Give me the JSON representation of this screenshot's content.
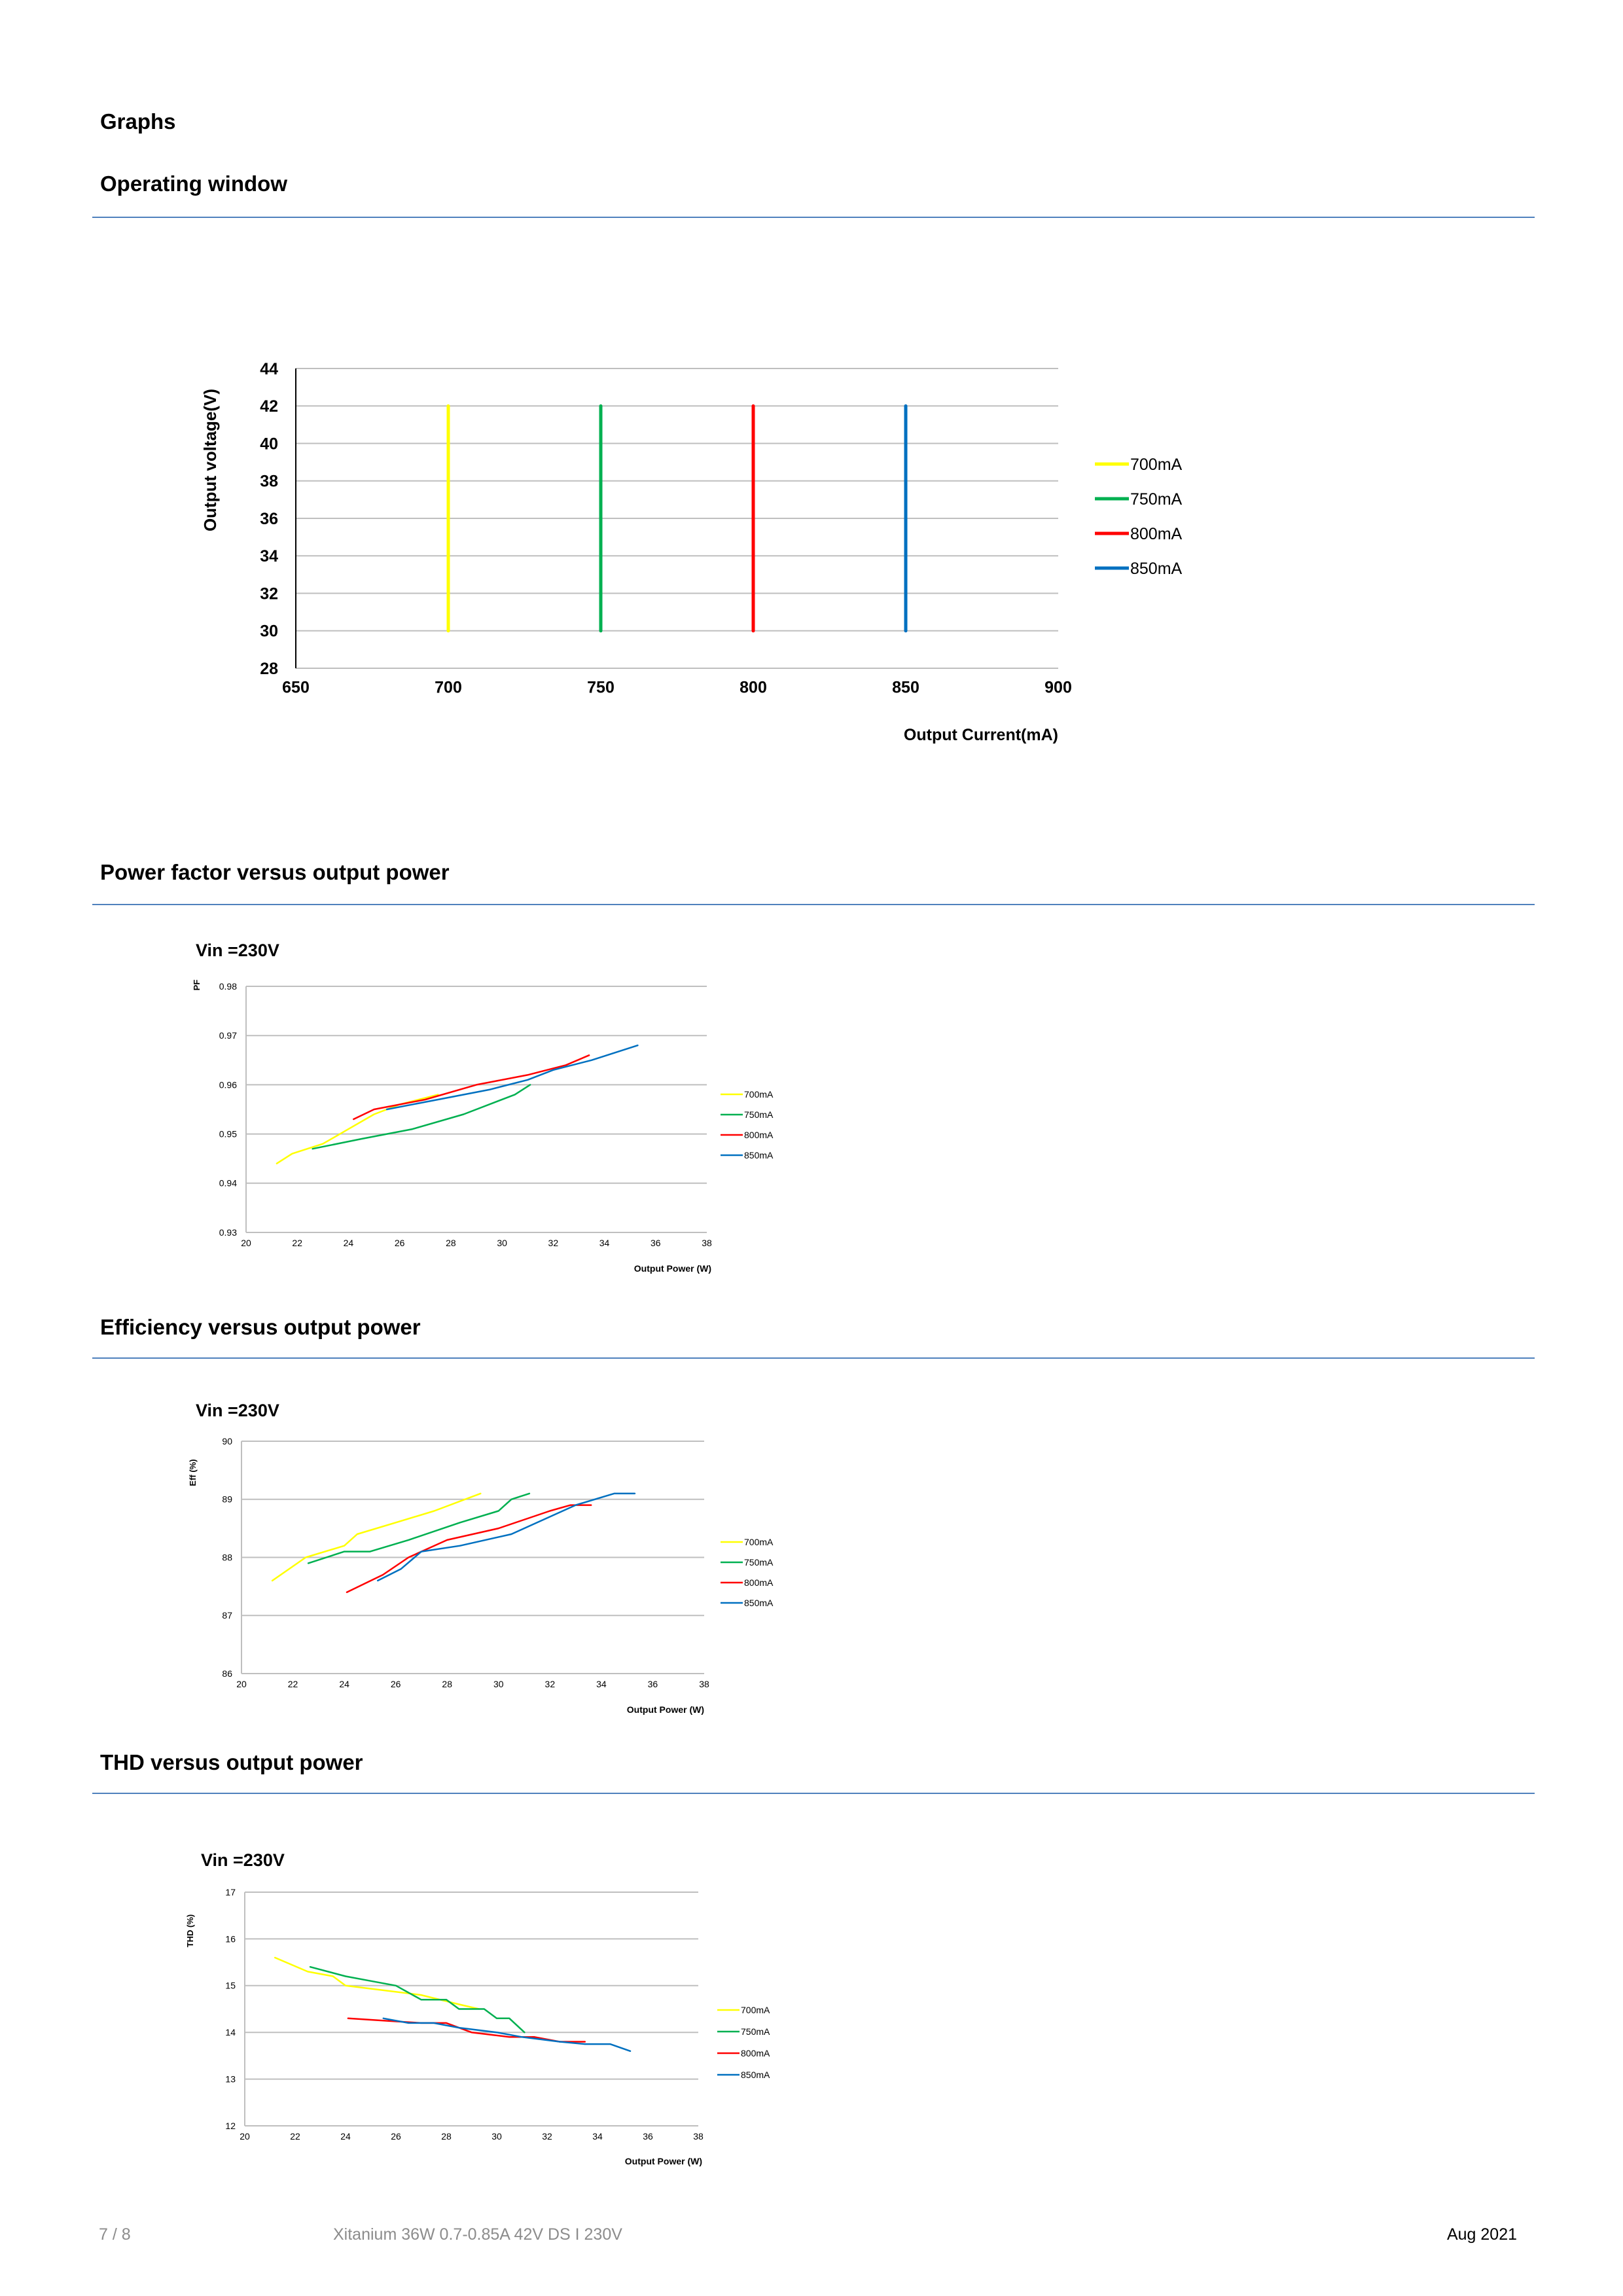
{
  "page": {
    "title": "Graphs",
    "sections": {
      "operating_window": "Operating window",
      "pf": "Power factor versus output power",
      "eff": "Efficiency versus output power",
      "thd": "THD versus output power"
    }
  },
  "footer": {
    "page": "7 / 8",
    "product": "Xitanium 36W 0.7-0.85A 42V DS I 230V",
    "date": "Aug 2021"
  },
  "colors": {
    "700mA": "#ffff00",
    "750mA": "#00b050",
    "800mA": "#ff0000",
    "850mA": "#0070c0",
    "grid": "#bfbfbf",
    "rule": "#4f81bd"
  },
  "chart_data": [
    {
      "id": "ow",
      "type": "line",
      "title": "",
      "xlabel": "Output Current(mA)",
      "ylabel": "Output voltage(V)",
      "xlim": [
        650,
        900
      ],
      "ylim": [
        28,
        44
      ],
      "xticks": [
        650,
        700,
        750,
        800,
        850,
        900
      ],
      "yticks": [
        28,
        30,
        32,
        34,
        36,
        38,
        40,
        42,
        44
      ],
      "grid": true,
      "legend": "right",
      "series": [
        {
          "name": "700mA",
          "color": "#ffff00",
          "points": [
            [
              700,
              30
            ],
            [
              700,
              42
            ]
          ]
        },
        {
          "name": "750mA",
          "color": "#00b050",
          "points": [
            [
              750,
              30
            ],
            [
              750,
              42
            ]
          ]
        },
        {
          "name": "800mA",
          "color": "#ff0000",
          "points": [
            [
              800,
              30
            ],
            [
              800,
              42
            ]
          ]
        },
        {
          "name": "850mA",
          "color": "#0070c0",
          "points": [
            [
              850,
              30
            ],
            [
              850,
              42
            ]
          ]
        }
      ]
    },
    {
      "id": "pf",
      "type": "line",
      "title": "Vin =230V",
      "xlabel": "Output Power (W)",
      "ylabel": "PF",
      "xlim": [
        20,
        38
      ],
      "ylim": [
        0.93,
        0.98
      ],
      "xticks": [
        20,
        22,
        24,
        26,
        28,
        30,
        32,
        34,
        36,
        38
      ],
      "yticks": [
        0.93,
        0.94,
        0.95,
        0.96,
        0.97,
        0.98
      ],
      "grid": true,
      "legend": "right",
      "series": [
        {
          "name": "700mA",
          "color": "#ffff00",
          "points": [
            [
              21.2,
              0.944
            ],
            [
              21.8,
              0.946
            ],
            [
              23.0,
              0.948
            ],
            [
              24.0,
              0.951
            ],
            [
              25.0,
              0.954
            ],
            [
              26.0,
              0.956
            ],
            [
              27.5,
              0.958
            ]
          ]
        },
        {
          "name": "750mA",
          "color": "#00b050",
          "points": [
            [
              22.6,
              0.947
            ],
            [
              24.5,
              0.949
            ],
            [
              26.5,
              0.951
            ],
            [
              28.5,
              0.954
            ],
            [
              30.5,
              0.958
            ],
            [
              31.1,
              0.96
            ]
          ]
        },
        {
          "name": "800mA",
          "color": "#ff0000",
          "points": [
            [
              24.2,
              0.953
            ],
            [
              25.0,
              0.955
            ],
            [
              27.0,
              0.957
            ],
            [
              29.0,
              0.96
            ],
            [
              31.0,
              0.962
            ],
            [
              32.5,
              0.964
            ],
            [
              33.4,
              0.966
            ]
          ]
        },
        {
          "name": "850mA",
          "color": "#0070c0",
          "points": [
            [
              25.5,
              0.955
            ],
            [
              27.5,
              0.957
            ],
            [
              29.5,
              0.959
            ],
            [
              31.0,
              0.961
            ],
            [
              32.0,
              0.963
            ],
            [
              33.5,
              0.965
            ],
            [
              35.3,
              0.968
            ]
          ]
        }
      ]
    },
    {
      "id": "eff",
      "type": "line",
      "title": "Vin =230V",
      "xlabel": "Output Power (W)",
      "ylabel": "Eff  (%)",
      "xlim": [
        20,
        38
      ],
      "ylim": [
        86,
        90
      ],
      "xticks": [
        20,
        22,
        24,
        26,
        28,
        30,
        32,
        34,
        36,
        38
      ],
      "yticks": [
        86,
        87,
        88,
        89,
        90
      ],
      "grid": true,
      "legend": "right",
      "series": [
        {
          "name": "700mA",
          "color": "#ffff00",
          "points": [
            [
              21.2,
              87.6
            ],
            [
              22.5,
              88.0
            ],
            [
              24.0,
              88.2
            ],
            [
              24.5,
              88.4
            ],
            [
              26.0,
              88.6
            ],
            [
              27.5,
              88.8
            ],
            [
              29.3,
              89.1
            ]
          ]
        },
        {
          "name": "750mA",
          "color": "#00b050",
          "points": [
            [
              22.6,
              87.9
            ],
            [
              24.0,
              88.1
            ],
            [
              25.0,
              88.1
            ],
            [
              26.5,
              88.3
            ],
            [
              28.5,
              88.6
            ],
            [
              30.0,
              88.8
            ],
            [
              30.5,
              89.0
            ],
            [
              31.2,
              89.1
            ]
          ]
        },
        {
          "name": "800mA",
          "color": "#ff0000",
          "points": [
            [
              24.1,
              87.4
            ],
            [
              25.5,
              87.7
            ],
            [
              26.5,
              88.0
            ],
            [
              28.0,
              88.3
            ],
            [
              30.0,
              88.5
            ],
            [
              32.0,
              88.8
            ],
            [
              32.8,
              88.9
            ],
            [
              33.6,
              88.9
            ]
          ]
        },
        {
          "name": "850mA",
          "color": "#0070c0",
          "points": [
            [
              25.3,
              87.6
            ],
            [
              26.2,
              87.8
            ],
            [
              27.0,
              88.1
            ],
            [
              28.5,
              88.2
            ],
            [
              30.5,
              88.4
            ],
            [
              32.0,
              88.7
            ],
            [
              33.0,
              88.9
            ],
            [
              34.5,
              89.1
            ],
            [
              35.3,
              89.1
            ]
          ]
        }
      ]
    },
    {
      "id": "thd",
      "type": "line",
      "title": "Vin =230V",
      "xlabel": "Output Power (W)",
      "ylabel": "THD  (%)",
      "xlim": [
        20,
        38
      ],
      "ylim": [
        12,
        17
      ],
      "xticks": [
        20,
        22,
        24,
        26,
        28,
        30,
        32,
        34,
        36,
        38
      ],
      "yticks": [
        12,
        13,
        14,
        15,
        16,
        17
      ],
      "grid": true,
      "legend": "right",
      "series": [
        {
          "name": "700mA",
          "color": "#ffff00",
          "points": [
            [
              21.2,
              15.6
            ],
            [
              22.5,
              15.3
            ],
            [
              23.5,
              15.2
            ],
            [
              24.0,
              15.0
            ],
            [
              25.5,
              14.9
            ],
            [
              27.0,
              14.8
            ],
            [
              28.5,
              14.6
            ],
            [
              29.3,
              14.5
            ]
          ]
        },
        {
          "name": "750mA",
          "color": "#00b050",
          "points": [
            [
              22.6,
              15.4
            ],
            [
              24.0,
              15.2
            ],
            [
              25.0,
              15.1
            ],
            [
              26.0,
              15.0
            ],
            [
              27.0,
              14.7
            ],
            [
              28.0,
              14.7
            ],
            [
              28.5,
              14.5
            ],
            [
              29.5,
              14.5
            ],
            [
              30.0,
              14.3
            ],
            [
              30.5,
              14.3
            ],
            [
              31.1,
              14.0
            ]
          ]
        },
        {
          "name": "800mA",
          "color": "#ff0000",
          "points": [
            [
              24.1,
              14.3
            ],
            [
              25.5,
              14.25
            ],
            [
              27.0,
              14.2
            ],
            [
              28.0,
              14.2
            ],
            [
              29.0,
              14.0
            ],
            [
              30.5,
              13.9
            ],
            [
              31.5,
              13.9
            ],
            [
              32.5,
              13.8
            ],
            [
              33.5,
              13.8
            ]
          ]
        },
        {
          "name": "850mA",
          "color": "#0070c0",
          "points": [
            [
              25.5,
              14.3
            ],
            [
              26.5,
              14.2
            ],
            [
              27.5,
              14.2
            ],
            [
              28.5,
              14.1
            ],
            [
              30.0,
              14.0
            ],
            [
              31.0,
              13.9
            ],
            [
              32.5,
              13.8
            ],
            [
              33.5,
              13.75
            ],
            [
              34.5,
              13.75
            ],
            [
              35.3,
              13.6
            ]
          ]
        }
      ]
    }
  ]
}
